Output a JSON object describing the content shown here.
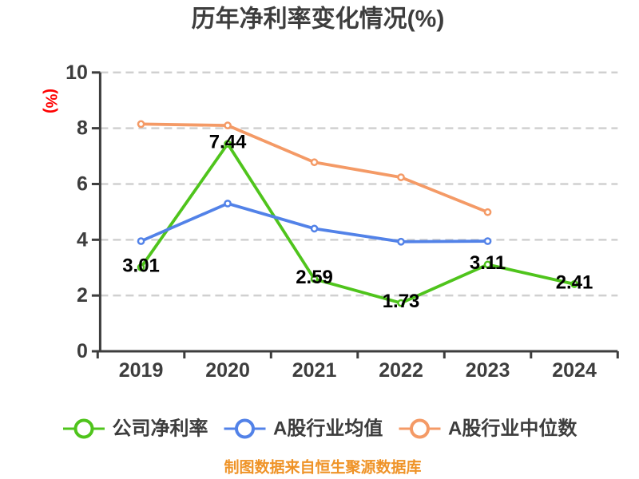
{
  "chart_data": {
    "type": "line",
    "title": "历年净利率变化情况(%)",
    "ylabel": "(%)",
    "xlabel": "",
    "categories": [
      "2019",
      "2020",
      "2021",
      "2022",
      "2023",
      "2024"
    ],
    "ylim": [
      0,
      10
    ],
    "yticks": [
      "0",
      "2",
      "4",
      "6",
      "8",
      "10"
    ],
    "grid": "horizontal-dashed",
    "legend_position": "bottom",
    "series": [
      {
        "name": "公司净利率",
        "color": "#4fc41c",
        "values": [
          3.01,
          7.44,
          2.59,
          1.73,
          3.11,
          2.41
        ],
        "data_labels": [
          "3.01",
          "7.44",
          "2.59",
          "1.73",
          "3.11",
          "2.41"
        ]
      },
      {
        "name": "A股行业均值",
        "color": "#5282e8",
        "values": [
          3.95,
          5.3,
          4.4,
          3.93,
          3.95,
          null
        ],
        "data_labels": null
      },
      {
        "name": "A股行业中位数",
        "color": "#f49a66",
        "values": [
          8.15,
          8.1,
          6.78,
          6.24,
          4.99,
          null
        ],
        "data_labels": null
      }
    ],
    "source_note": "制图数据来自恒生聚源数据库"
  },
  "style": {
    "title_color": "#3d3d3d",
    "axis_color": "#3d3d3d",
    "tick_label_color": "#3d3d3d",
    "data_label_color": "#000000",
    "ylabel_color": "#fe0000",
    "grid_color": "#d0d0d0",
    "legend_text_color": "#3d3d3d",
    "source_note_color": "#ef9327",
    "background_color": "#ffffff"
  }
}
